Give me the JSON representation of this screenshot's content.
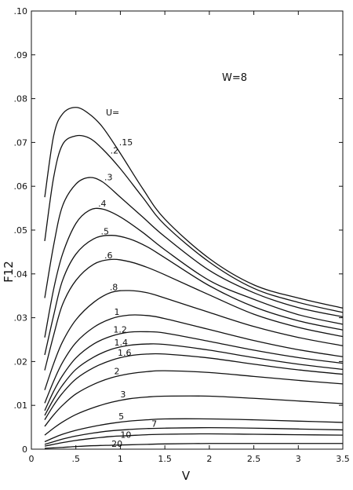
{
  "chart_data": {
    "type": "line",
    "title": "",
    "xlabel": "V",
    "ylabel": "F12",
    "xlim": [
      0,
      3.5
    ],
    "ylim": [
      0,
      0.1
    ],
    "xticks": [
      0,
      0.5,
      1,
      1.5,
      2,
      2.5,
      3,
      3.5
    ],
    "xtick_labels": [
      "0",
      ".5",
      "1",
      "1.5",
      "2",
      "2.5",
      "3",
      "3.5"
    ],
    "yticks": [
      0,
      0.01,
      0.02,
      0.03,
      0.04,
      0.05,
      0.06,
      0.07,
      0.08,
      0.09,
      0.1
    ],
    "ytick_labels": [
      "0",
      ".01",
      ".02",
      ".03",
      ".04",
      ".05",
      ".06",
      ".07",
      ".08",
      ".09",
      ".10"
    ],
    "grid": false,
    "legend": "none",
    "line_color": "#111111",
    "annotations": {
      "parameter": "W=8",
      "curve_parameter_heading": "U="
    },
    "series": [
      {
        "name": ".15",
        "x": [
          0.15,
          0.25,
          0.35,
          0.5,
          0.65,
          0.8,
          1.0,
          1.25,
          1.5,
          2.0,
          2.5,
          3.0,
          3.5
        ],
        "y": [
          0.0575,
          0.0715,
          0.0765,
          0.078,
          0.0765,
          0.0735,
          0.0675,
          0.0595,
          0.0525,
          0.0435,
          0.0375,
          0.0345,
          0.0322
        ]
      },
      {
        "name": ".2",
        "x": [
          0.15,
          0.25,
          0.35,
          0.5,
          0.65,
          0.8,
          1.0,
          1.25,
          1.5,
          2.0,
          2.5,
          3.0,
          3.5
        ],
        "y": [
          0.0475,
          0.062,
          0.0695,
          0.0715,
          0.071,
          0.0685,
          0.064,
          0.0575,
          0.0512,
          0.0427,
          0.0367,
          0.0335,
          0.0312
        ]
      },
      {
        "name": ".3",
        "x": [
          0.15,
          0.25,
          0.35,
          0.5,
          0.65,
          0.8,
          1.0,
          1.25,
          1.5,
          2.0,
          2.5,
          3.0,
          3.5
        ],
        "y": [
          0.0345,
          0.0465,
          0.0555,
          0.0605,
          0.062,
          0.061,
          0.0575,
          0.053,
          0.0485,
          0.0408,
          0.0357,
          0.0323,
          0.0302
        ]
      },
      {
        "name": ".4",
        "x": [
          0.15,
          0.25,
          0.35,
          0.5,
          0.65,
          0.8,
          1.0,
          1.25,
          1.5,
          2.0,
          2.5,
          3.0,
          3.5
        ],
        "y": [
          0.0255,
          0.0365,
          0.0445,
          0.0515,
          0.0545,
          0.0548,
          0.053,
          0.0495,
          0.0455,
          0.0385,
          0.0342,
          0.0307,
          0.0285
        ]
      },
      {
        "name": ".5",
        "x": [
          0.15,
          0.25,
          0.35,
          0.5,
          0.7,
          0.9,
          1.1,
          1.3,
          1.5,
          2.0,
          2.5,
          3.0,
          3.5
        ],
        "y": [
          0.0215,
          0.0305,
          0.0385,
          0.0445,
          0.048,
          0.0488,
          0.048,
          0.0462,
          0.0437,
          0.0373,
          0.0325,
          0.0293,
          0.0272
        ]
      },
      {
        "name": ".6",
        "x": [
          0.15,
          0.25,
          0.35,
          0.5,
          0.7,
          0.9,
          1.1,
          1.3,
          1.5,
          2.0,
          2.5,
          3.0,
          3.5
        ],
        "y": [
          0.018,
          0.026,
          0.033,
          0.0385,
          0.0422,
          0.0433,
          0.0428,
          0.0415,
          0.0398,
          0.0352,
          0.0308,
          0.0278,
          0.0257
        ]
      },
      {
        "name": ".8",
        "x": [
          0.15,
          0.25,
          0.35,
          0.5,
          0.7,
          0.9,
          1.1,
          1.3,
          1.5,
          2.0,
          2.5,
          3.0,
          3.5
        ],
        "y": [
          0.0135,
          0.0195,
          0.0245,
          0.0295,
          0.0335,
          0.0358,
          0.0362,
          0.0357,
          0.0345,
          0.0312,
          0.028,
          0.0255,
          0.0236
        ]
      },
      {
        "name": "1",
        "x": [
          0.15,
          0.25,
          0.35,
          0.5,
          0.7,
          0.9,
          1.1,
          1.3,
          1.5,
          2.0,
          2.5,
          3.0,
          3.5
        ],
        "y": [
          0.0105,
          0.0155,
          0.0198,
          0.0243,
          0.0278,
          0.0298,
          0.0306,
          0.0305,
          0.0298,
          0.0273,
          0.0248,
          0.0227,
          0.0211
        ]
      },
      {
        "name": "1.2",
        "x": [
          0.15,
          0.25,
          0.35,
          0.5,
          0.7,
          0.9,
          1.1,
          1.3,
          1.5,
          2.0,
          2.5,
          3.0,
          3.5
        ],
        "y": [
          0.0088,
          0.0132,
          0.0168,
          0.0208,
          0.024,
          0.0258,
          0.0267,
          0.0268,
          0.0265,
          0.0246,
          0.0226,
          0.0209,
          0.0196
        ]
      },
      {
        "name": "1.4",
        "x": [
          0.15,
          0.25,
          0.35,
          0.5,
          0.7,
          0.9,
          1.1,
          1.3,
          1.5,
          2.0,
          2.5,
          3.0,
          3.5
        ],
        "y": [
          0.0077,
          0.0114,
          0.0146,
          0.0182,
          0.021,
          0.0228,
          0.0237,
          0.024,
          0.0239,
          0.0226,
          0.0209,
          0.0194,
          0.0182
        ]
      },
      {
        "name": "1.6",
        "x": [
          0.15,
          0.25,
          0.35,
          0.5,
          0.7,
          0.9,
          1.1,
          1.3,
          1.5,
          2.0,
          2.5,
          3.0,
          3.5
        ],
        "y": [
          0.0067,
          0.01,
          0.0128,
          0.016,
          0.0186,
          0.0203,
          0.0213,
          0.0217,
          0.0217,
          0.0208,
          0.0194,
          0.0181,
          0.0171
        ]
      },
      {
        "name": "2",
        "x": [
          0.15,
          0.25,
          0.35,
          0.5,
          0.7,
          0.9,
          1.1,
          1.3,
          1.5,
          2.0,
          2.5,
          3.0,
          3.5
        ],
        "y": [
          0.0052,
          0.0078,
          0.01,
          0.0126,
          0.0148,
          0.0163,
          0.0172,
          0.0177,
          0.0179,
          0.0175,
          0.0166,
          0.0157,
          0.0149
        ]
      },
      {
        "name": "3",
        "x": [
          0.15,
          0.25,
          0.35,
          0.5,
          0.7,
          0.9,
          1.1,
          1.3,
          1.5,
          2.0,
          2.5,
          3.0,
          3.5
        ],
        "y": [
          0.0032,
          0.0048,
          0.0062,
          0.0079,
          0.0095,
          0.0107,
          0.0115,
          0.0119,
          0.0121,
          0.0121,
          0.0116,
          0.011,
          0.0104
        ]
      },
      {
        "name": "5",
        "x": [
          0.15,
          0.25,
          0.35,
          0.5,
          0.7,
          0.9,
          1.1,
          1.3,
          1.5,
          2.0,
          2.5,
          3.0,
          3.5
        ],
        "y": [
          0.0017,
          0.0026,
          0.0034,
          0.0043,
          0.0052,
          0.0059,
          0.0064,
          0.0067,
          0.0069,
          0.0069,
          0.0067,
          0.0064,
          0.0061
        ]
      },
      {
        "name": "7",
        "x": [
          0.15,
          0.25,
          0.35,
          0.5,
          0.7,
          0.9,
          1.1,
          1.3,
          1.5,
          2.0,
          2.5,
          3.0,
          3.5
        ],
        "y": [
          0.0011,
          0.0017,
          0.0023,
          0.003,
          0.0037,
          0.0042,
          0.0045,
          0.0047,
          0.0048,
          0.0049,
          0.0048,
          0.0046,
          0.0044
        ]
      },
      {
        "name": "10",
        "x": [
          0.15,
          0.25,
          0.35,
          0.5,
          0.7,
          0.9,
          1.1,
          1.3,
          1.5,
          2.0,
          2.5,
          3.0,
          3.5
        ],
        "y": [
          0.0007,
          0.0011,
          0.0015,
          0.002,
          0.0025,
          0.0029,
          0.0031,
          0.0033,
          0.0034,
          0.0035,
          0.0034,
          0.0033,
          0.0032
        ]
      },
      {
        "name": "20",
        "x": [
          0.15,
          0.25,
          0.35,
          0.5,
          0.7,
          0.9,
          1.1,
          1.3,
          1.5,
          2.0,
          2.5,
          3.0,
          3.5
        ],
        "y": [
          0.0002,
          0.0003,
          0.0004,
          0.0006,
          0.0008,
          0.0009,
          0.001,
          0.0011,
          0.0012,
          0.0013,
          0.0013,
          0.0013,
          0.0013
        ]
      }
    ]
  }
}
